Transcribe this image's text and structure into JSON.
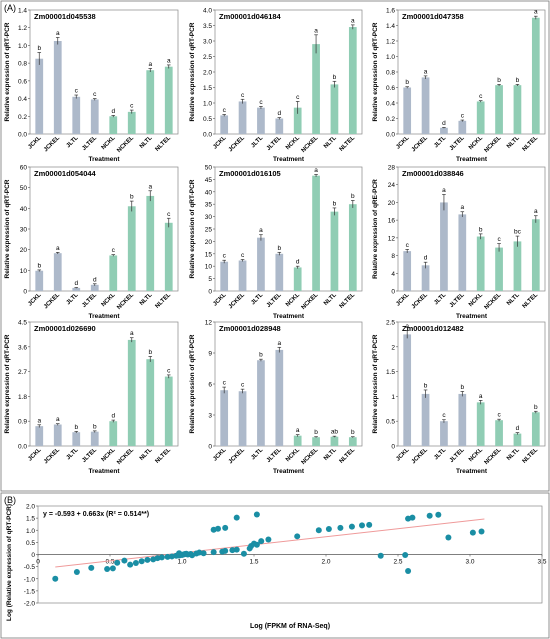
{
  "panel_labels": {
    "a": "(A)",
    "b": "(B)"
  },
  "colors": {
    "blue": "#adb9ca",
    "green": "#90cdb4",
    "scatter": "#1a8ea4",
    "trend": "#ef9a9a",
    "axis": "#555555"
  },
  "chart_data": [
    {
      "type": "bar",
      "title": "Zm00001d045538",
      "categories": [
        "JCKL",
        "JCKEL",
        "JLTL",
        "JLTEL",
        "NCKL",
        "NCKEL",
        "NLTL",
        "NLTEL"
      ],
      "values": [
        0.85,
        1.05,
        0.42,
        0.39,
        0.2,
        0.25,
        0.72,
        0.76
      ],
      "errors": [
        0.07,
        0.04,
        0.02,
        0.01,
        0.01,
        0.02,
        0.02,
        0.02
      ],
      "letters": [
        "b",
        "a",
        "c",
        "c",
        "d",
        "c",
        "a",
        "a"
      ],
      "ylim": [
        0,
        1.4
      ],
      "yticks": [
        "0.0",
        "0.2",
        "0.4",
        "0.6",
        "0.8",
        "1.0",
        "1.2",
        "1.4"
      ],
      "ylabel": "Relative expression of qRT-PCR",
      "xlabel": "Treatment"
    },
    {
      "type": "bar",
      "title": "Zm00001d046184",
      "categories": [
        "JCKL",
        "JCKEL",
        "JLTL",
        "JLTEL",
        "NCKL",
        "NCKEL",
        "NLTL",
        "NLTEL"
      ],
      "values": [
        0.6,
        1.05,
        0.85,
        0.5,
        0.85,
        2.9,
        1.6,
        3.45
      ],
      "errors": [
        0.03,
        0.07,
        0.04,
        0.03,
        0.2,
        0.3,
        0.1,
        0.07
      ],
      "letters": [
        "c",
        "c",
        "c",
        "d",
        "c",
        "a",
        "b",
        "a"
      ],
      "ylim": [
        0,
        4.0
      ],
      "yticks": [
        "0.0",
        "0.5",
        "1.0",
        "1.5",
        "2.0",
        "2.5",
        "3.0",
        "3.5",
        "4.0"
      ],
      "ylabel": "Relative expression of qRT-PCR",
      "xlabel": "Treatment"
    },
    {
      "type": "bar",
      "title": "Zm00001d047358",
      "categories": [
        "JCKL",
        "JCKEL",
        "JLTL",
        "JLTEL",
        "NCKL",
        "NCKEL",
        "NLTL",
        "NLTEL"
      ],
      "values": [
        0.6,
        0.73,
        0.08,
        0.17,
        0.42,
        0.63,
        0.63,
        1.5
      ],
      "errors": [
        0.01,
        0.02,
        0.005,
        0.01,
        0.01,
        0.01,
        0.01,
        0.02
      ],
      "letters": [
        "b",
        "a",
        "d",
        "c",
        "c",
        "b",
        "b",
        "a"
      ],
      "ylim": [
        0,
        1.6
      ],
      "yticks": [
        "0.0",
        "0.2",
        "0.4",
        "0.6",
        "0.8",
        "1.0",
        "1.2",
        "1.4",
        "1.6"
      ],
      "ylabel": "Relative expression of qRT-PCR",
      "xlabel": "Treatment"
    },
    {
      "type": "bar",
      "title": "Zm00001d054044",
      "categories": [
        "JCKL",
        "JCKEL",
        "JLTL",
        "JLTEL",
        "NCKL",
        "NCKEL",
        "NLTL",
        "NLTEL"
      ],
      "values": [
        9.8,
        18.3,
        1.5,
        3.0,
        17.2,
        41.0,
        46.0,
        33.0
      ],
      "errors": [
        0.4,
        0.4,
        0.2,
        0.5,
        0.4,
        2.5,
        2.5,
        2.2
      ],
      "letters": [
        "b",
        "a",
        "d",
        "d",
        "c",
        "b",
        "a",
        "c"
      ],
      "ylim": [
        0,
        60
      ],
      "yticks": [
        "0",
        "10",
        "20",
        "30",
        "40",
        "50",
        "60"
      ],
      "ylabel": "Relative expression of qRT-PCR",
      "xlabel": "Treatment"
    },
    {
      "type": "bar",
      "title": "Zm00001d016105",
      "categories": [
        "JCKL",
        "JCKEL",
        "JLTL",
        "JLTEL",
        "NCKL",
        "NCKEL",
        "NLTL",
        "NLTEL"
      ],
      "values": [
        11.8,
        12.3,
        21.5,
        15.0,
        9.5,
        46.5,
        32.0,
        35.0
      ],
      "errors": [
        0.6,
        0.4,
        1.2,
        0.6,
        0.5,
        0.5,
        1.5,
        1.5
      ],
      "letters": [
        "c",
        "c",
        "a",
        "b",
        "d",
        "a",
        "b",
        "b"
      ],
      "ylim": [
        0,
        50
      ],
      "yticks": [
        "0",
        "5",
        "10",
        "15",
        "20",
        "25",
        "30",
        "35",
        "40",
        "45",
        "50"
      ],
      "ylabel": "Relative expression of qRT-PCR",
      "xlabel": "Treatment"
    },
    {
      "type": "bar",
      "title": "Zm00001d038846",
      "categories": [
        "JCKL",
        "JCKEL",
        "JLTL",
        "JLTEL",
        "NCKL",
        "NCKEL",
        "NLTL",
        "NLTEL"
      ],
      "values": [
        9.0,
        5.8,
        20.0,
        17.3,
        12.3,
        9.8,
        11.2,
        16.2
      ],
      "errors": [
        0.4,
        0.7,
        1.8,
        0.6,
        0.6,
        0.9,
        1.2,
        0.8
      ],
      "letters": [
        "c",
        "d",
        "a",
        "a",
        "b",
        "c",
        "bc",
        "a"
      ],
      "ylim": [
        0,
        28
      ],
      "yticks": [
        "0",
        "4",
        "8",
        "12",
        "16",
        "20",
        "24",
        "28"
      ],
      "ylabel": "Relative expression of qRE-PCR",
      "xlabel": "Treatment"
    },
    {
      "type": "bar",
      "title": "Zm00001d026690",
      "categories": [
        "JCKL",
        "JCKEL",
        "JLTL",
        "JLTEL",
        "NCKL",
        "NCKEL",
        "NLTL",
        "NLTEL"
      ],
      "values": [
        0.72,
        0.78,
        0.5,
        0.52,
        0.9,
        3.85,
        3.15,
        2.52
      ],
      "errors": [
        0.05,
        0.03,
        0.03,
        0.03,
        0.04,
        0.08,
        0.1,
        0.06
      ],
      "letters": [
        "a",
        "a",
        "b",
        "b",
        "d",
        "a",
        "b",
        "c"
      ],
      "ylim": [
        0,
        4.5
      ],
      "yticks": [
        "0.0",
        "0.9",
        "1.8",
        "2.7",
        "3.6",
        "4.5"
      ],
      "ylabel": "Relative expression of qRT-PCR",
      "xlabel": "Treatment"
    },
    {
      "type": "bar",
      "title": "Zm00001d028948",
      "categories": [
        "JCKL",
        "JCKEL",
        "JLTL",
        "JLTEL",
        "NCKL",
        "NCKEL",
        "NLTL",
        "NLTEL"
      ],
      "values": [
        5.4,
        5.3,
        8.3,
        9.3,
        1.0,
        0.85,
        0.9,
        0.85
      ],
      "errors": [
        0.3,
        0.2,
        0.1,
        0.25,
        0.1,
        0.05,
        0.05,
        0.05
      ],
      "letters": [
        "c",
        "c",
        "b",
        "a",
        "a",
        "b",
        "ab",
        "b"
      ],
      "ylim": [
        0,
        12
      ],
      "yticks": [
        "0",
        "3",
        "6",
        "9",
        "12"
      ],
      "ylabel": "Relative expression of qRT-PCR",
      "xlabel": "Treatment"
    },
    {
      "type": "bar",
      "title": "Zm00001d012482",
      "categories": [
        "JCKL",
        "JCKEL",
        "JLTL",
        "JLTEL",
        "NCKL",
        "NCKEL",
        "NLTL",
        "NLTEL"
      ],
      "values": [
        2.25,
        1.05,
        0.5,
        1.05,
        0.88,
        0.52,
        0.25,
        0.68
      ],
      "errors": [
        0.08,
        0.08,
        0.03,
        0.05,
        0.04,
        0.02,
        0.02,
        0.02
      ],
      "letters": [
        "a",
        "b",
        "c",
        "b",
        "a",
        "c",
        "d",
        "b"
      ],
      "ylim": [
        0,
        2.5
      ],
      "yticks": [
        "0",
        "0.5",
        "1",
        "1.5",
        "2",
        "2.5"
      ],
      "ylabel": "Relative expression of qRT-PCR",
      "xlabel": "Treatment"
    },
    {
      "type": "scatter",
      "equation": "y = -0.593 + 0.663x (R² = 0.514**)",
      "xlabel": "Log (FPKM of RNA-Seq)",
      "ylabel": "Log (Relative expression of qRT-PCR)",
      "xlim": [
        0,
        3.5
      ],
      "ylim": [
        -2,
        2
      ],
      "xticks": [
        "0",
        "0.5",
        "1.0",
        "1.5",
        "2.0",
        "2.5",
        "3.0",
        "3.5"
      ],
      "yticks": [
        "-2.0",
        "-1.5",
        "-1.0",
        "-0.5",
        "0",
        "0.5",
        "1.0",
        "1.5",
        "2.0"
      ],
      "trend": {
        "intercept": -0.593,
        "slope": 0.663
      },
      "points": [
        [
          0.12,
          -1.0
        ],
        [
          0.27,
          -0.72
        ],
        [
          0.37,
          -0.55
        ],
        [
          0.48,
          -0.6
        ],
        [
          0.52,
          -0.57
        ],
        [
          0.55,
          -0.34
        ],
        [
          0.6,
          -0.25
        ],
        [
          0.64,
          -0.42
        ],
        [
          0.68,
          -0.35
        ],
        [
          0.72,
          -0.28
        ],
        [
          0.76,
          -0.22
        ],
        [
          0.8,
          -0.2
        ],
        [
          0.83,
          -0.15
        ],
        [
          0.86,
          -0.12
        ],
        [
          0.9,
          -0.1
        ],
        [
          0.93,
          -0.08
        ],
        [
          0.96,
          -0.05
        ],
        [
          0.98,
          -0.04
        ],
        [
          1.0,
          -0.02
        ],
        [
          1.01,
          0.0
        ],
        [
          1.02,
          0.02
        ],
        [
          1.03,
          0.03
        ],
        [
          1.04,
          0.0
        ],
        [
          1.06,
          0.02
        ],
        [
          1.07,
          -0.03
        ],
        [
          1.1,
          0.04
        ],
        [
          1.22,
          1.02
        ],
        [
          1.25,
          1.06
        ],
        [
          1.3,
          1.1
        ],
        [
          1.38,
          1.52
        ],
        [
          1.52,
          1.65
        ],
        [
          1.43,
          0.03
        ],
        [
          1.38,
          0.2
        ],
        [
          1.35,
          0.18
        ],
        [
          1.3,
          0.15
        ],
        [
          1.28,
          0.12
        ],
        [
          1.22,
          0.1
        ],
        [
          1.15,
          0.05
        ],
        [
          1.48,
          0.35
        ],
        [
          1.52,
          0.4
        ],
        [
          1.5,
          0.45
        ],
        [
          1.47,
          0.25
        ],
        [
          1.55,
          0.55
        ],
        [
          1.6,
          0.62
        ],
        [
          1.8,
          0.75
        ],
        [
          1.95,
          1.0
        ],
        [
          2.02,
          1.05
        ],
        [
          2.1,
          1.1
        ],
        [
          2.18,
          1.15
        ],
        [
          2.25,
          1.2
        ],
        [
          2.3,
          1.22
        ],
        [
          2.57,
          1.48
        ],
        [
          2.6,
          1.52
        ],
        [
          2.72,
          1.6
        ],
        [
          2.78,
          1.64
        ],
        [
          2.85,
          0.7
        ],
        [
          3.02,
          0.9
        ],
        [
          3.08,
          0.95
        ],
        [
          2.38,
          -0.05
        ],
        [
          2.55,
          -0.02
        ],
        [
          2.57,
          -0.68
        ],
        [
          0.98,
          0.05
        ],
        [
          1.12,
          0.08
        ]
      ]
    }
  ]
}
